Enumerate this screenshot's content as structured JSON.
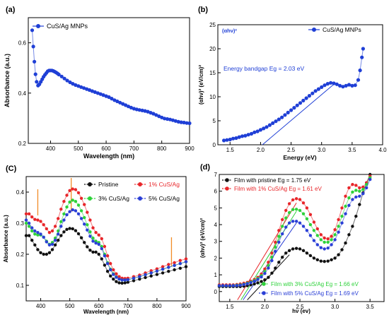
{
  "chart_data": [
    {
      "panel_label": "(a)",
      "type": "scatter",
      "xlabel": "Wavelength (nm)",
      "ylabel": "Absorbance (a.u.)",
      "xlim": [
        320,
        900
      ],
      "ylim": [
        0.2,
        0.7
      ],
      "xticks": [
        400,
        500,
        600,
        700,
        800,
        900
      ],
      "yticks": [
        0.2,
        0.4,
        0.6
      ],
      "legend_position": "top-left",
      "series": [
        {
          "name": "CuS/Ag MNPs",
          "color": "#1f3fd6",
          "x": [
            334,
            338,
            342,
            346,
            350,
            355,
            360,
            365,
            370,
            375,
            380,
            385,
            390,
            395,
            400,
            405,
            410,
            415,
            420,
            425,
            430,
            440,
            450,
            460,
            470,
            480,
            490,
            500,
            510,
            520,
            530,
            540,
            550,
            560,
            570,
            580,
            590,
            600,
            610,
            620,
            630,
            640,
            650,
            660,
            670,
            680,
            690,
            700,
            710,
            720,
            730,
            740,
            750,
            760,
            770,
            780,
            790,
            800,
            810,
            820,
            830,
            840,
            850,
            860,
            870,
            880,
            890,
            900
          ],
          "y": [
            0.65,
            0.585,
            0.525,
            0.475,
            0.445,
            0.43,
            0.435,
            0.445,
            0.455,
            0.465,
            0.473,
            0.48,
            0.487,
            0.49,
            0.49,
            0.49,
            0.488,
            0.485,
            0.482,
            0.478,
            0.474,
            0.466,
            0.458,
            0.45,
            0.443,
            0.437,
            0.432,
            0.428,
            0.424,
            0.42,
            0.416,
            0.412,
            0.408,
            0.404,
            0.4,
            0.396,
            0.392,
            0.388,
            0.384,
            0.378,
            0.372,
            0.367,
            0.362,
            0.357,
            0.352,
            0.347,
            0.342,
            0.338,
            0.335,
            0.333,
            0.331,
            0.329,
            0.326,
            0.322,
            0.318,
            0.313,
            0.308,
            0.303,
            0.299,
            0.297,
            0.295,
            0.292,
            0.289,
            0.286,
            0.284,
            0.283,
            0.281,
            0.28
          ]
        }
      ]
    },
    {
      "panel_label": "(b)",
      "type": "scatter",
      "corner_label": "(αhν)²",
      "xlabel": "Energy (eV)",
      "ylabel": "(αhν)² (eV/cm)²",
      "xlim": [
        1.3,
        4.0
      ],
      "ylim": [
        0,
        25
      ],
      "xticks": [
        1.5,
        2.0,
        2.5,
        3.0,
        3.5,
        4.0
      ],
      "yticks": [
        0,
        5,
        10,
        15,
        20,
        25
      ],
      "legend_position": "top-right",
      "annotation": "Energy bandgap Eg = 2.03 eV",
      "fit_line": {
        "x": [
          2.03,
          3.2
        ],
        "y": [
          0,
          12.6
        ]
      },
      "series": [
        {
          "name": "CuS/Ag MNPs",
          "color": "#1f3fd6",
          "x": [
            1.4,
            1.45,
            1.5,
            1.55,
            1.6,
            1.65,
            1.7,
            1.75,
            1.8,
            1.85,
            1.9,
            1.95,
            2.0,
            2.05,
            2.1,
            2.15,
            2.2,
            2.25,
            2.3,
            2.35,
            2.4,
            2.45,
            2.5,
            2.55,
            2.6,
            2.65,
            2.7,
            2.75,
            2.8,
            2.85,
            2.9,
            2.95,
            3.0,
            3.05,
            3.1,
            3.15,
            3.2,
            3.25,
            3.3,
            3.35,
            3.4,
            3.45,
            3.5,
            3.55,
            3.6,
            3.63,
            3.66,
            3.68
          ],
          "y": [
            0.9,
            1.0,
            1.1,
            1.3,
            1.4,
            1.6,
            1.8,
            1.9,
            2.1,
            2.3,
            2.6,
            2.8,
            3.1,
            3.4,
            3.7,
            4.1,
            4.5,
            4.9,
            5.3,
            5.7,
            6.2,
            6.7,
            7.2,
            7.7,
            8.2,
            8.7,
            9.2,
            9.7,
            10.2,
            10.7,
            11.2,
            11.6,
            12.0,
            12.4,
            12.7,
            12.9,
            12.8,
            12.6,
            12.3,
            12.1,
            12.3,
            12.5,
            12.3,
            12.4,
            13.5,
            15.5,
            18.2,
            20.0
          ]
        }
      ]
    },
    {
      "panel_label": "(C)",
      "type": "scatter",
      "xlabel": "Wavelength (nm)",
      "ylabel": "Absorbance (a.u.)",
      "xlim": [
        350,
        900
      ],
      "ylim": [
        0.05,
        0.45
      ],
      "xticks": [
        400,
        500,
        600,
        700,
        800,
        900
      ],
      "yticks": [
        0.1,
        0.2,
        0.3,
        0.4
      ],
      "legend_position": "top",
      "markers_lines_x": [
        390,
        505,
        850
      ],
      "x": [
        350,
        360,
        370,
        380,
        390,
        400,
        410,
        420,
        430,
        440,
        450,
        460,
        470,
        480,
        490,
        500,
        510,
        520,
        530,
        540,
        550,
        560,
        570,
        580,
        590,
        600,
        610,
        620,
        630,
        640,
        650,
        660,
        670,
        680,
        690,
        700,
        720,
        740,
        760,
        780,
        800,
        820,
        840,
        860,
        880,
        900
      ],
      "series": [
        {
          "name": "Pristine",
          "color": "#111111",
          "values": [
            0.26,
            0.26,
            0.245,
            0.23,
            0.215,
            0.205,
            0.2,
            0.2,
            0.205,
            0.215,
            0.23,
            0.245,
            0.26,
            0.272,
            0.28,
            0.283,
            0.282,
            0.276,
            0.266,
            0.253,
            0.238,
            0.224,
            0.213,
            0.207,
            0.207,
            0.2,
            0.185,
            0.165,
            0.145,
            0.13,
            0.12,
            0.112,
            0.108,
            0.107,
            0.108,
            0.11,
            0.115,
            0.12,
            0.125,
            0.13,
            0.135,
            0.14,
            0.145,
            0.15,
            0.155,
            0.16
          ]
        },
        {
          "name": "1% CuS/Ag",
          "color": "#e8262a",
          "values": [
            0.33,
            0.33,
            0.32,
            0.312,
            0.31,
            0.306,
            0.295,
            0.282,
            0.27,
            0.275,
            0.29,
            0.315,
            0.345,
            0.37,
            0.39,
            0.405,
            0.41,
            0.408,
            0.398,
            0.38,
            0.36,
            0.335,
            0.31,
            0.285,
            0.27,
            0.262,
            0.25,
            0.225,
            0.195,
            0.17,
            0.15,
            0.137,
            0.128,
            0.123,
            0.122,
            0.123,
            0.128,
            0.133,
            0.14,
            0.147,
            0.153,
            0.16,
            0.167,
            0.173,
            0.18,
            0.185
          ]
        },
        {
          "name": "3% CuS/Ag",
          "color": "#2ed23a",
          "values": [
            0.3,
            0.29,
            0.275,
            0.265,
            0.262,
            0.262,
            0.255,
            0.242,
            0.232,
            0.238,
            0.252,
            0.275,
            0.305,
            0.33,
            0.352,
            0.368,
            0.374,
            0.37,
            0.358,
            0.34,
            0.318,
            0.295,
            0.272,
            0.252,
            0.242,
            0.238,
            0.225,
            0.2,
            0.173,
            0.152,
            0.137,
            0.127,
            0.12,
            0.117,
            0.117,
            0.118,
            0.123,
            0.128,
            0.134,
            0.14,
            0.146,
            0.152,
            0.158,
            0.164,
            0.17,
            0.176
          ]
        },
        {
          "name": "5% CuS/Ag",
          "color": "#2a3fd6",
          "values": [
            0.31,
            0.3,
            0.285,
            0.275,
            0.27,
            0.265,
            0.255,
            0.24,
            0.23,
            0.232,
            0.245,
            0.265,
            0.29,
            0.31,
            0.327,
            0.337,
            0.343,
            0.34,
            0.33,
            0.315,
            0.297,
            0.278,
            0.258,
            0.242,
            0.236,
            0.232,
            0.218,
            0.195,
            0.17,
            0.15,
            0.135,
            0.126,
            0.12,
            0.117,
            0.117,
            0.118,
            0.123,
            0.128,
            0.134,
            0.14,
            0.146,
            0.152,
            0.158,
            0.164,
            0.17,
            0.176
          ]
        }
      ]
    },
    {
      "panel_label": "(d)",
      "type": "scatter",
      "xlabel": "hν (ev)",
      "ylabel": "(αhν)² (eV/cm)²",
      "xlim": [
        1.35,
        3.7
      ],
      "ylim": [
        -0.6,
        7
      ],
      "xticks": [
        1.5,
        2.0,
        2.5,
        3.0,
        3.5
      ],
      "yticks": [
        0,
        1,
        2,
        3,
        4,
        5,
        6,
        7
      ],
      "legend_position": "top-left and bottom-right",
      "x": [
        1.35,
        1.4,
        1.45,
        1.5,
        1.55,
        1.6,
        1.65,
        1.7,
        1.75,
        1.8,
        1.85,
        1.9,
        1.95,
        2.0,
        2.05,
        2.1,
        2.15,
        2.2,
        2.25,
        2.3,
        2.35,
        2.4,
        2.45,
        2.5,
        2.55,
        2.6,
        2.65,
        2.7,
        2.75,
        2.8,
        2.85,
        2.9,
        2.95,
        3.0,
        3.05,
        3.1,
        3.15,
        3.2,
        3.25,
        3.3,
        3.35,
        3.4,
        3.45,
        3.5
      ],
      "series": [
        {
          "name": "Film with pristine Eg = 1.75 eV",
          "color": "#111111",
          "values": [
            0.3,
            0.3,
            0.3,
            0.3,
            0.3,
            0.3,
            0.3,
            0.32,
            0.35,
            0.4,
            0.45,
            0.52,
            0.6,
            0.7,
            0.85,
            1.1,
            1.4,
            1.75,
            2.05,
            2.3,
            2.45,
            2.55,
            2.58,
            2.55,
            2.45,
            2.3,
            2.15,
            2.0,
            1.9,
            1.82,
            1.8,
            1.82,
            1.9,
            2.0,
            2.2,
            2.5,
            2.9,
            3.4,
            3.9,
            4.5,
            5.2,
            5.9,
            6.5,
            7.0
          ],
          "fit_line": {
            "x": [
              1.75,
              2.35
            ],
            "y": [
              -0.5,
              2.2
            ]
          }
        },
        {
          "name": "Film with 1% CuS/Ag Eg = 1.61 eV",
          "color": "#e8262a",
          "values": [
            0.4,
            0.4,
            0.4,
            0.4,
            0.4,
            0.42,
            0.45,
            0.5,
            0.55,
            0.62,
            0.72,
            0.85,
            1.05,
            1.35,
            1.75,
            2.3,
            2.95,
            3.65,
            4.3,
            4.85,
            5.25,
            5.48,
            5.55,
            5.5,
            5.3,
            5.0,
            4.6,
            4.15,
            3.75,
            3.4,
            3.2,
            3.15,
            3.3,
            3.7,
            4.3,
            5.0,
            5.7,
            6.2,
            6.4,
            6.35,
            6.2,
            6.25,
            6.5,
            6.9
          ],
          "fit_line": {
            "x": [
              1.61,
              2.45
            ],
            "y": [
              -0.5,
              5.3
            ]
          }
        },
        {
          "name": "Film with 3% CuS/Ag Eg = 1.66 eV",
          "color": "#2ed23a",
          "values": [
            0.35,
            0.35,
            0.35,
            0.35,
            0.36,
            0.38,
            0.4,
            0.44,
            0.5,
            0.57,
            0.66,
            0.78,
            0.95,
            1.2,
            1.55,
            2.05,
            2.65,
            3.3,
            3.9,
            4.4,
            4.72,
            4.9,
            4.92,
            4.85,
            4.65,
            4.35,
            4.0,
            3.65,
            3.35,
            3.1,
            2.95,
            2.95,
            3.1,
            3.4,
            3.9,
            4.5,
            5.1,
            5.6,
            5.95,
            6.05,
            6.0,
            6.1,
            6.4,
            6.8
          ],
          "fit_line": {
            "x": [
              1.66,
              2.45
            ],
            "y": [
              -0.5,
              4.8
            ]
          }
        },
        {
          "name": "Film with 5% CuS/Ag Eg = 1.69 eV",
          "color": "#2a3fd6",
          "values": [
            0.35,
            0.35,
            0.35,
            0.35,
            0.35,
            0.36,
            0.38,
            0.42,
            0.47,
            0.53,
            0.61,
            0.72,
            0.87,
            1.08,
            1.4,
            1.85,
            2.4,
            2.95,
            3.45,
            3.85,
            4.1,
            4.2,
            4.2,
            4.1,
            3.9,
            3.65,
            3.35,
            3.05,
            2.8,
            2.62,
            2.55,
            2.6,
            2.8,
            3.1,
            3.55,
            4.1,
            4.65,
            5.15,
            5.5,
            5.65,
            5.7,
            5.85,
            6.2,
            6.7
          ],
          "fit_line": {
            "x": [
              1.69,
              2.45
            ],
            "y": [
              -0.5,
              4.1
            ]
          }
        }
      ]
    }
  ]
}
